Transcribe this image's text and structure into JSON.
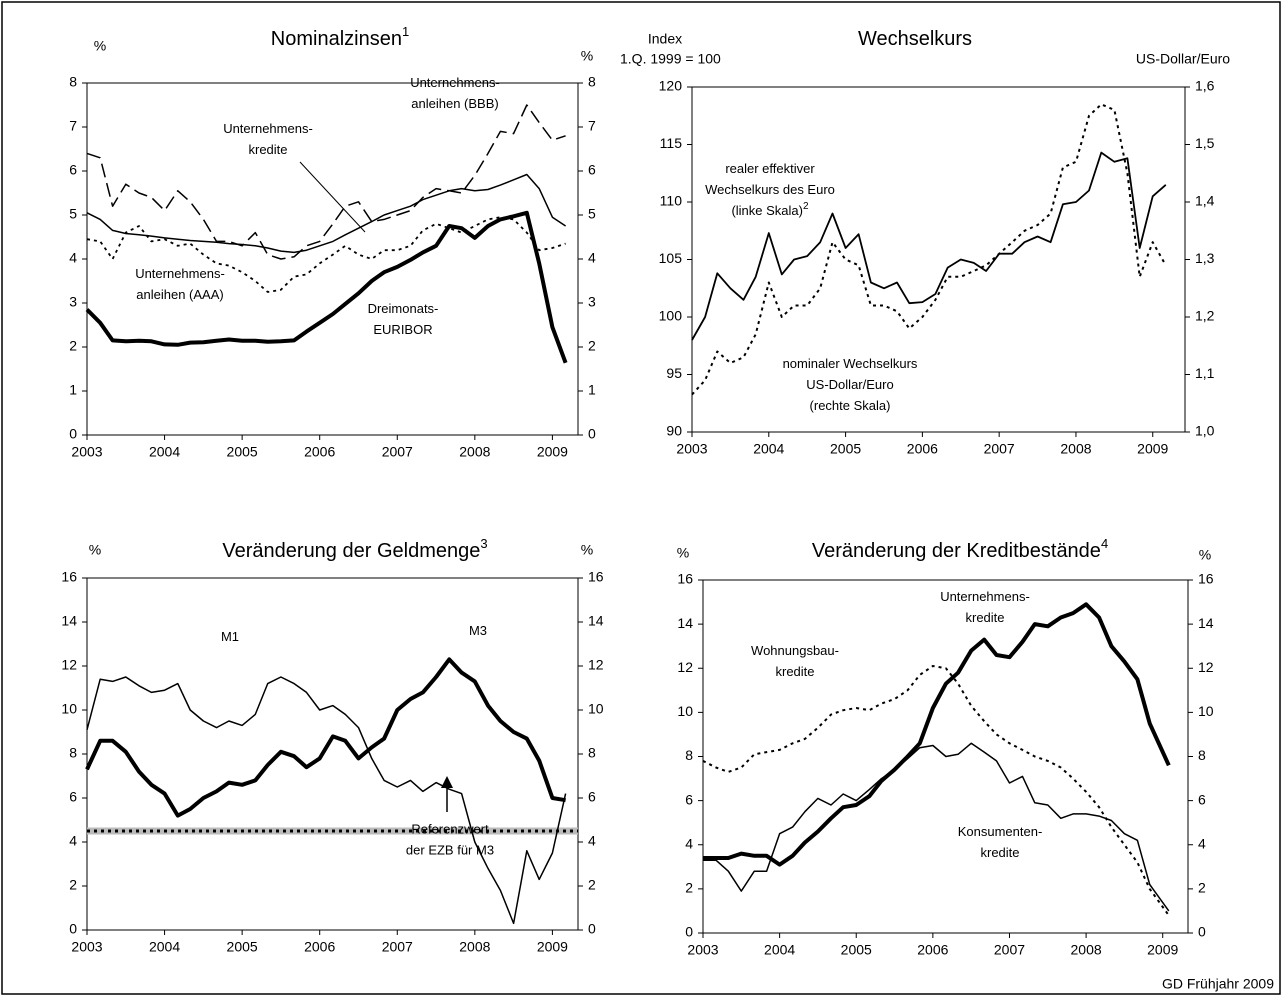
{
  "chart_data": [
    {
      "type": "line",
      "title": "Nominalzinsen",
      "title_note": "1",
      "ylabel": [
        "%"
      ],
      "y2label": [
        "%"
      ],
      "xlim": [
        2003,
        2009.33
      ],
      "xticks": [
        2003,
        2004,
        2005,
        2006,
        2007,
        2008,
        2009
      ],
      "ylim": [
        0,
        8
      ],
      "yticks": [
        0,
        1,
        2,
        3,
        4,
        5,
        6,
        7,
        8
      ],
      "y2lim": [
        0,
        8
      ],
      "y2ticks": [
        0,
        1,
        2,
        3,
        4,
        5,
        6,
        7,
        8
      ],
      "x": [
        2003,
        2003.17,
        2003.33,
        2003.5,
        2003.67,
        2003.83,
        2004,
        2004.17,
        2004.33,
        2004.5,
        2004.67,
        2004.83,
        2005,
        2005.17,
        2005.33,
        2005.5,
        2005.67,
        2005.83,
        2006,
        2006.17,
        2006.33,
        2006.5,
        2006.67,
        2006.83,
        2007,
        2007.17,
        2007.33,
        2007.5,
        2007.67,
        2007.83,
        2008,
        2008.17,
        2008.33,
        2008.5,
        2008.67,
        2008.83,
        2009,
        2009.17
      ],
      "series": [
        {
          "name": [
            "Unternehmens-",
            "anleihen (BBB)"
          ],
          "color": "#000",
          "dash": "dashed",
          "line_width": 1.5,
          "values": [
            6.4,
            6.3,
            5.2,
            5.7,
            5.5,
            5.4,
            5.1,
            5.55,
            5.3,
            4.9,
            4.4,
            4.4,
            4.3,
            4.6,
            4.1,
            4.0,
            4.05,
            4.3,
            4.4,
            4.8,
            5.2,
            5.3,
            4.85,
            4.9,
            5.0,
            5.1,
            5.4,
            5.6,
            5.55,
            5.5,
            5.9,
            6.4,
            6.9,
            6.85,
            7.5,
            7.1,
            6.7,
            6.8
          ]
        },
        {
          "name": [
            "Unternehmens-",
            "kredite"
          ],
          "color": "#000",
          "dash": "solid",
          "line_width": 1.5,
          "values": [
            5.05,
            4.9,
            4.65,
            4.58,
            4.55,
            4.52,
            4.48,
            4.45,
            4.42,
            4.4,
            4.38,
            4.35,
            4.33,
            4.3,
            4.25,
            4.18,
            4.15,
            4.2,
            4.3,
            4.4,
            4.55,
            4.7,
            4.85,
            5.0,
            5.1,
            5.2,
            5.35,
            5.45,
            5.55,
            5.6,
            5.55,
            5.58,
            5.68,
            5.8,
            5.92,
            5.6,
            4.95,
            4.75
          ]
        },
        {
          "name": [
            "Unternehmens-",
            "anleihen (AAA)"
          ],
          "color": "#000",
          "dash": "dotted",
          "line_width": 1.8,
          "values": [
            4.45,
            4.4,
            4.0,
            4.6,
            4.75,
            4.4,
            4.45,
            4.3,
            4.35,
            4.1,
            3.9,
            3.85,
            3.7,
            3.5,
            3.25,
            3.3,
            3.6,
            3.65,
            3.9,
            4.1,
            4.3,
            4.1,
            4.0,
            4.2,
            4.2,
            4.3,
            4.65,
            4.8,
            4.7,
            4.6,
            4.75,
            4.9,
            4.95,
            4.9,
            4.6,
            4.2,
            4.25,
            4.35
          ]
        },
        {
          "name": [
            "Dreimonats-",
            "EURIBOR"
          ],
          "color": "#000",
          "dash": "solid",
          "line_width": 4,
          "values": [
            2.85,
            2.55,
            2.15,
            2.13,
            2.14,
            2.13,
            2.06,
            2.05,
            2.1,
            2.11,
            2.14,
            2.17,
            2.14,
            2.14,
            2.12,
            2.13,
            2.15,
            2.35,
            2.55,
            2.75,
            2.98,
            3.22,
            3.5,
            3.7,
            3.82,
            3.98,
            4.15,
            4.3,
            4.75,
            4.7,
            4.48,
            4.75,
            4.9,
            4.97,
            5.05,
            3.9,
            2.45,
            1.64
          ]
        }
      ]
    },
    {
      "type": "line",
      "title": "Wechselkurs",
      "ylabel": [
        "Index",
        "1.Q. 1999 = 100"
      ],
      "y2label": [
        "US-Dollar/Euro"
      ],
      "xlim": [
        2003,
        2009.42
      ],
      "xticks": [
        2003,
        2004,
        2005,
        2006,
        2007,
        2008,
        2009
      ],
      "ylim": [
        90,
        120
      ],
      "yticks": [
        90,
        95,
        100,
        105,
        110,
        115,
        120
      ],
      "y2lim": [
        1.0,
        1.6
      ],
      "y2ticks": [
        {
          "value": 1.0,
          "label": "1,0"
        },
        {
          "value": 1.1,
          "label": "1,1"
        },
        {
          "value": 1.2,
          "label": "1,2"
        },
        {
          "value": 1.3,
          "label": "1,3"
        },
        {
          "value": 1.4,
          "label": "1,4"
        },
        {
          "value": 1.5,
          "label": "1,5"
        },
        {
          "value": 1.6,
          "label": "1,6"
        }
      ],
      "x": [
        2003,
        2003.17,
        2003.33,
        2003.5,
        2003.67,
        2003.83,
        2004,
        2004.17,
        2004.33,
        2004.5,
        2004.67,
        2004.83,
        2005,
        2005.17,
        2005.33,
        2005.5,
        2005.67,
        2005.83,
        2006,
        2006.17,
        2006.33,
        2006.5,
        2006.67,
        2006.83,
        2007,
        2007.17,
        2007.33,
        2007.5,
        2007.67,
        2007.83,
        2008,
        2008.17,
        2008.33,
        2008.5,
        2008.67,
        2008.83,
        2009,
        2009.17
      ],
      "series": [
        {
          "name": [
            "realer effektiver",
            "Wechselkurs des Euro",
            "(linke Skala)"
          ],
          "note": "2",
          "color": "#000",
          "dash": "solid",
          "line_width": 1.8,
          "values": [
            98,
            100,
            103.8,
            102.5,
            101.5,
            103.5,
            107.3,
            103.7,
            105,
            105.3,
            106.5,
            109,
            106,
            107.2,
            103,
            102.5,
            103,
            101.2,
            101.3,
            102,
            104.3,
            105,
            104.7,
            104,
            105.5,
            105.5,
            106.5,
            107,
            106.5,
            109.8,
            110,
            111,
            114.3,
            113.5,
            113.8,
            106,
            110.5,
            111.5
          ]
        },
        {
          "name": [
            "nominaler Wechselkurs",
            "US-Dollar/Euro",
            "(rechte Skala)"
          ],
          "color": "#000",
          "dash": "dotted",
          "line_width": 2,
          "axis": "y2",
          "values": [
            1.065,
            1.09,
            1.14,
            1.12,
            1.13,
            1.17,
            1.26,
            1.2,
            1.22,
            1.22,
            1.25,
            1.33,
            1.3,
            1.29,
            1.22,
            1.22,
            1.21,
            1.18,
            1.2,
            1.23,
            1.27,
            1.27,
            1.28,
            1.29,
            1.31,
            1.33,
            1.35,
            1.36,
            1.38,
            1.46,
            1.47,
            1.55,
            1.57,
            1.56,
            1.45,
            1.27,
            1.33,
            1.29
          ]
        }
      ]
    },
    {
      "type": "line",
      "title": "Veränderung der Geldmenge",
      "title_note": "3",
      "ylabel": [
        "%"
      ],
      "y2label": [
        "%"
      ],
      "xlim": [
        2003,
        2009.33
      ],
      "xticks": [
        2003,
        2004,
        2005,
        2006,
        2007,
        2008,
        2009
      ],
      "ylim": [
        0,
        16
      ],
      "yticks": [
        0,
        2,
        4,
        6,
        8,
        10,
        12,
        14,
        16
      ],
      "y2lim": [
        0,
        16
      ],
      "y2ticks": [
        0,
        2,
        4,
        6,
        8,
        10,
        12,
        14,
        16
      ],
      "x": [
        2003,
        2003.17,
        2003.33,
        2003.5,
        2003.67,
        2003.83,
        2004,
        2004.17,
        2004.33,
        2004.5,
        2004.67,
        2004.83,
        2005,
        2005.17,
        2005.33,
        2005.5,
        2005.67,
        2005.83,
        2006,
        2006.17,
        2006.33,
        2006.5,
        2006.67,
        2006.83,
        2007,
        2007.17,
        2007.33,
        2007.5,
        2007.67,
        2007.83,
        2008,
        2008.17,
        2008.33,
        2008.5,
        2008.67,
        2008.83,
        2009,
        2009.17
      ],
      "reference_line": {
        "value": 4.5,
        "label": [
          "Referenzwert",
          "der EZB für M3"
        ]
      },
      "series": [
        {
          "name": [
            "M1"
          ],
          "color": "#000",
          "dash": "solid",
          "line_width": 1.5,
          "values": [
            9.1,
            11.4,
            11.3,
            11.5,
            11.1,
            10.8,
            10.9,
            11.2,
            10.0,
            9.5,
            9.2,
            9.5,
            9.3,
            9.8,
            11.2,
            11.5,
            11.2,
            10.8,
            10.0,
            10.2,
            9.8,
            9.2,
            7.8,
            6.8,
            6.5,
            6.8,
            6.3,
            6.7,
            6.4,
            6.2,
            4.0,
            2.8,
            1.8,
            0.3,
            3.6,
            2.3,
            3.5,
            6.2
          ]
        },
        {
          "name": [
            "M3"
          ],
          "color": "#000",
          "dash": "solid",
          "line_width": 4,
          "values": [
            7.3,
            8.6,
            8.6,
            8.1,
            7.2,
            6.6,
            6.2,
            5.2,
            5.5,
            6.0,
            6.3,
            6.7,
            6.6,
            6.8,
            7.5,
            8.1,
            7.9,
            7.4,
            7.8,
            8.8,
            8.6,
            7.8,
            8.3,
            8.7,
            10.0,
            10.5,
            10.8,
            11.5,
            12.3,
            11.7,
            11.3,
            10.2,
            9.5,
            9.0,
            8.7,
            7.7,
            6.0,
            5.9
          ]
        }
      ]
    },
    {
      "type": "line",
      "title": "Veränderung der Kreditbestände",
      "title_note": "4",
      "ylabel": [
        "%"
      ],
      "y2label": [
        "%"
      ],
      "xlim": [
        2003,
        2009.33
      ],
      "xticks": [
        2003,
        2004,
        2005,
        2006,
        2007,
        2008,
        2009
      ],
      "ylim": [
        0,
        16
      ],
      "yticks": [
        0,
        2,
        4,
        6,
        8,
        10,
        12,
        14,
        16
      ],
      "y2lim": [
        0,
        16
      ],
      "y2ticks": [
        0,
        2,
        4,
        6,
        8,
        10,
        12,
        14,
        16
      ],
      "x": [
        2003,
        2003.17,
        2003.33,
        2003.5,
        2003.67,
        2003.83,
        2004,
        2004.17,
        2004.33,
        2004.5,
        2004.67,
        2004.83,
        2005,
        2005.17,
        2005.33,
        2005.5,
        2005.67,
        2005.83,
        2006,
        2006.17,
        2006.33,
        2006.5,
        2006.67,
        2006.83,
        2007,
        2007.17,
        2007.33,
        2007.5,
        2007.67,
        2007.83,
        2008,
        2008.17,
        2008.33,
        2008.5,
        2008.67,
        2008.83,
        2009.08
      ],
      "series": [
        {
          "name": [
            "Unternehmens-",
            "kredite"
          ],
          "color": "#000",
          "dash": "solid",
          "line_width": 4,
          "values": [
            3.4,
            3.4,
            3.4,
            3.6,
            3.5,
            3.5,
            3.1,
            3.5,
            4.1,
            4.6,
            5.2,
            5.7,
            5.8,
            6.2,
            6.9,
            7.4,
            8.0,
            8.6,
            10.2,
            11.3,
            11.8,
            12.8,
            13.3,
            12.6,
            12.5,
            13.2,
            14.0,
            13.9,
            14.3,
            14.5,
            14.9,
            14.3,
            13.0,
            12.3,
            11.5,
            9.5,
            7.6
          ]
        },
        {
          "name": [
            "Wohnungsbau-",
            "kredite"
          ],
          "color": "#000",
          "dash": "dotted",
          "line_width": 2,
          "values": [
            7.8,
            7.5,
            7.3,
            7.5,
            8.1,
            8.2,
            8.3,
            8.6,
            8.8,
            9.3,
            9.9,
            10.1,
            10.2,
            10.1,
            10.4,
            10.6,
            11.0,
            11.7,
            12.1,
            12.0,
            11.3,
            10.3,
            9.6,
            9.0,
            8.6,
            8.3,
            8.0,
            7.8,
            7.5,
            7.0,
            6.4,
            5.7,
            4.8,
            4.0,
            3.2,
            2.0,
            0.8
          ]
        },
        {
          "name": [
            "Konsumenten-",
            "kredite"
          ],
          "color": "#000",
          "dash": "solid",
          "line_width": 1.5,
          "values": [
            3.3,
            3.3,
            2.8,
            1.9,
            2.8,
            2.8,
            4.5,
            4.8,
            5.5,
            6.1,
            5.8,
            6.3,
            6.0,
            6.5,
            7.0,
            7.4,
            7.9,
            8.4,
            8.5,
            8.0,
            8.1,
            8.6,
            8.2,
            7.8,
            6.8,
            7.1,
            5.9,
            5.8,
            5.2,
            5.4,
            5.4,
            5.3,
            5.1,
            4.5,
            4.2,
            2.2,
            1.0
          ]
        }
      ]
    }
  ],
  "footer": "GD Frühjahr 2009"
}
